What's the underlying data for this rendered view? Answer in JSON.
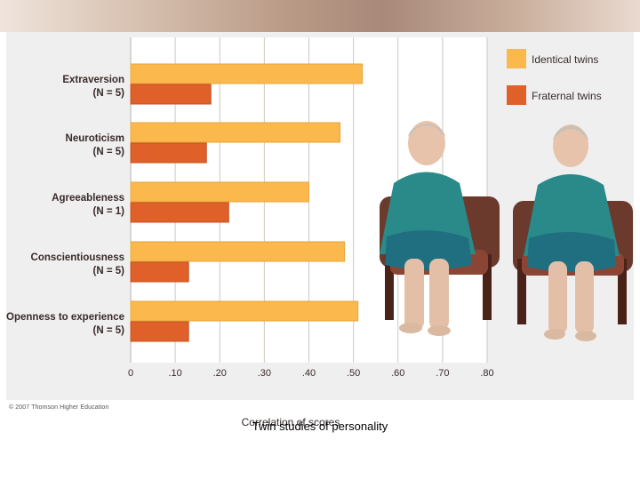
{
  "chart_data": {
    "type": "bar",
    "orientation": "horizontal",
    "categories": [
      {
        "name": "Extraversion",
        "n": "(N = 5)"
      },
      {
        "name": "Neuroticism",
        "n": "(N = 5)"
      },
      {
        "name": "Agreeableness",
        "n": "(N = 1)"
      },
      {
        "name": "Conscientiousness",
        "n": "(N = 5)"
      },
      {
        "name": "Openness to experience",
        "n": "(N = 5)"
      }
    ],
    "series": [
      {
        "name": "Identical twins",
        "color": "#fbb84d",
        "values": [
          0.52,
          0.47,
          0.4,
          0.48,
          0.51
        ]
      },
      {
        "name": "Fraternal twins",
        "color": "#e0602a",
        "values": [
          0.18,
          0.17,
          0.22,
          0.13,
          0.13
        ]
      }
    ],
    "xlabel": "Correlation of scores",
    "xlim": [
      0,
      0.8
    ],
    "xticks": [
      {
        "value": 0,
        "label": "0"
      },
      {
        "value": 0.1,
        "label": ".10"
      },
      {
        "value": 0.2,
        "label": ".20"
      },
      {
        "value": 0.3,
        "label": ".30"
      },
      {
        "value": 0.4,
        "label": ".40"
      },
      {
        "value": 0.5,
        "label": ".50"
      },
      {
        "value": 0.6,
        "label": ".60"
      },
      {
        "value": 0.7,
        "label": ".70"
      },
      {
        "value": 0.8,
        "label": ".80"
      }
    ],
    "grid": true,
    "legend_position": "top-right"
  },
  "copyright": "© 2007 Thomson Higher Education",
  "caption": "Twin studies of personality"
}
